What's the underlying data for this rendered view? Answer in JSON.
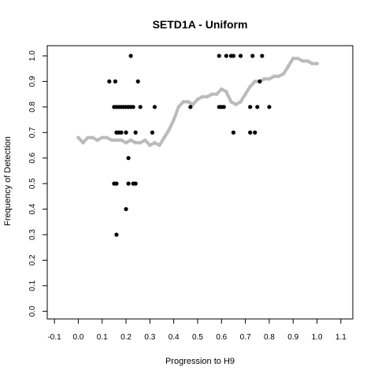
{
  "chart_data": {
    "type": "scatter",
    "title": "SETD1A - Uniform",
    "xlabel": "Progression to H9",
    "ylabel": "Frequency of Detection",
    "xlim": [
      -0.13,
      1.15
    ],
    "ylim": [
      -0.03,
      1.04
    ],
    "x_ticks": [
      -0.1,
      0.0,
      0.1,
      0.2,
      0.3,
      0.4,
      0.5,
      0.6,
      0.7,
      0.8,
      0.9,
      1.0,
      1.1
    ],
    "x_tick_labels": [
      "-0.1",
      "0.0",
      "0.1",
      "0.2",
      "0.3",
      "0.4",
      "0.5",
      "0.6",
      "0.7",
      "0.8",
      "0.9",
      "1.0",
      "1.1"
    ],
    "y_ticks": [
      0.0,
      0.1,
      0.2,
      0.3,
      0.4,
      0.5,
      0.6,
      0.7,
      0.8,
      0.9,
      1.0
    ],
    "y_tick_labels": [
      "0.0",
      "0.1",
      "0.2",
      "0.3",
      "0.4",
      "0.5",
      "0.6",
      "0.7",
      "0.8",
      "0.9",
      "1.0"
    ],
    "grid": false,
    "colors": {
      "points": "#000000",
      "trend": "#bbbbbb",
      "frame": "#000000"
    },
    "series": [
      {
        "kind": "points",
        "x": [
          0.13,
          0.155,
          0.15,
          0.16,
          0.17,
          0.18,
          0.19,
          0.2,
          0.21,
          0.22,
          0.23,
          0.25,
          0.26,
          0.32,
          0.16,
          0.17,
          0.18,
          0.2,
          0.24,
          0.31,
          0.21,
          0.15,
          0.16,
          0.21,
          0.23,
          0.24,
          0.2,
          0.16,
          0.22,
          0.47,
          0.59,
          0.6,
          0.61,
          0.72,
          0.75,
          0.8,
          0.59,
          0.62,
          0.64,
          0.65,
          0.68,
          0.73,
          0.77,
          0.76,
          0.65,
          0.72,
          0.74
        ],
        "y": [
          0.9,
          0.9,
          0.8,
          0.8,
          0.8,
          0.8,
          0.8,
          0.8,
          0.8,
          0.8,
          0.8,
          0.9,
          0.8,
          0.8,
          0.7,
          0.7,
          0.7,
          0.7,
          0.7,
          0.7,
          0.6,
          0.5,
          0.5,
          0.5,
          0.5,
          0.5,
          0.4,
          0.3,
          1.0,
          0.8,
          0.8,
          0.8,
          0.8,
          0.8,
          0.8,
          0.8,
          1.0,
          1.0,
          1.0,
          1.0,
          1.0,
          1.0,
          1.0,
          0.9,
          0.7,
          0.7,
          0.7
        ]
      },
      {
        "kind": "trend",
        "x": [
          0.0,
          0.02,
          0.04,
          0.06,
          0.08,
          0.1,
          0.12,
          0.14,
          0.16,
          0.18,
          0.2,
          0.22,
          0.24,
          0.26,
          0.28,
          0.3,
          0.32,
          0.34,
          0.36,
          0.38,
          0.4,
          0.42,
          0.44,
          0.46,
          0.48,
          0.5,
          0.52,
          0.54,
          0.56,
          0.58,
          0.6,
          0.62,
          0.64,
          0.66,
          0.68,
          0.7,
          0.72,
          0.74,
          0.76,
          0.78,
          0.8,
          0.82,
          0.84,
          0.86,
          0.88,
          0.9,
          0.92,
          0.94,
          0.96,
          0.98,
          1.0
        ],
        "y": [
          0.68,
          0.66,
          0.68,
          0.68,
          0.67,
          0.68,
          0.68,
          0.67,
          0.67,
          0.67,
          0.66,
          0.67,
          0.66,
          0.66,
          0.67,
          0.65,
          0.66,
          0.65,
          0.68,
          0.71,
          0.75,
          0.8,
          0.82,
          0.82,
          0.81,
          0.83,
          0.84,
          0.84,
          0.85,
          0.85,
          0.87,
          0.86,
          0.82,
          0.81,
          0.82,
          0.85,
          0.88,
          0.9,
          0.9,
          0.91,
          0.91,
          0.92,
          0.92,
          0.93,
          0.96,
          0.99,
          0.99,
          0.98,
          0.98,
          0.97,
          0.97
        ]
      }
    ]
  }
}
